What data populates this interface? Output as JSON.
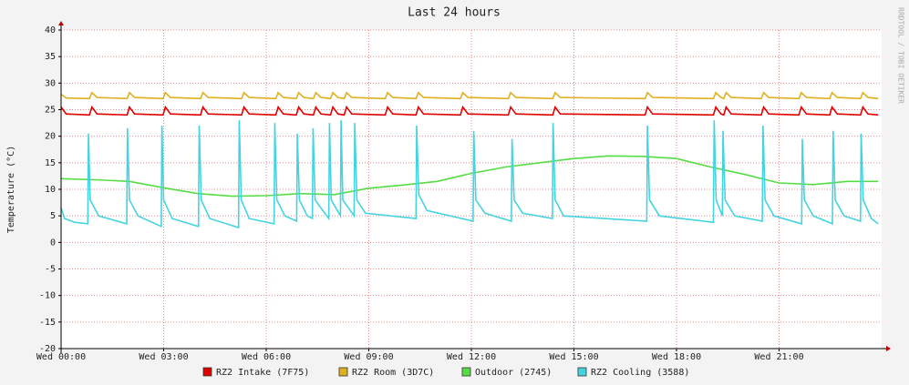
{
  "chart_data": {
    "type": "line",
    "title": "Last 24 hours",
    "y_label": "Temperature (°C)",
    "watermark": "RRDTOOL / TOBI OETIKER",
    "xlim": [
      0,
      24
    ],
    "xticks": [
      {
        "value": 0,
        "label": "Wed 00:00"
      },
      {
        "value": 3,
        "label": "Wed 03:00"
      },
      {
        "value": 6,
        "label": "Wed 06:00"
      },
      {
        "value": 9,
        "label": "Wed 09:00"
      },
      {
        "value": 12,
        "label": "Wed 12:00"
      },
      {
        "value": 15,
        "label": "Wed 15:00"
      },
      {
        "value": 18,
        "label": "Wed 18:00"
      },
      {
        "value": 21,
        "label": "Wed 21:00"
      }
    ],
    "ylim": [
      -20,
      40
    ],
    "yticks": [
      -20,
      -15,
      -10,
      -5,
      0,
      5,
      10,
      15,
      20,
      25,
      30,
      35,
      40
    ],
    "grid": true,
    "series": [
      {
        "name": "RZ2 Intake (7F75)",
        "color": "#e00000",
        "x": [
          0,
          0.15,
          0.83,
          0.9,
          1.05,
          1.93,
          2.0,
          2.15,
          2.98,
          3.05,
          3.2,
          4.08,
          4.15,
          4.3,
          5.28,
          5.35,
          5.5,
          6.28,
          6.35,
          6.5,
          6.88,
          6.95,
          7.1,
          7.38,
          7.45,
          7.6,
          7.88,
          7.95,
          8.1,
          8.28,
          8.35,
          8.5,
          9.48,
          9.55,
          9.7,
          10.38,
          10.45,
          10.6,
          11.68,
          11.75,
          11.9,
          13.08,
          13.15,
          13.3,
          14.38,
          14.45,
          14.6,
          17.08,
          17.15,
          17.3,
          19.08,
          19.15,
          19.3,
          19.38,
          19.45,
          19.6,
          20.48,
          20.55,
          20.7,
          21.58,
          21.65,
          21.8,
          22.48,
          22.55,
          22.7,
          23.38,
          23.45,
          23.6,
          23.9
        ],
        "values": [
          25.5,
          24.2,
          24,
          25.5,
          24.2,
          24,
          25.5,
          24.2,
          24,
          25.5,
          24.2,
          24,
          25.5,
          24.2,
          24,
          25.5,
          24.2,
          24,
          25.5,
          24.2,
          24,
          25.5,
          24.2,
          24,
          25.5,
          24.2,
          24,
          25.5,
          24.2,
          24,
          25.5,
          24.2,
          24,
          25.5,
          24.2,
          24,
          25.5,
          24.2,
          24,
          25.5,
          24.2,
          24,
          25.5,
          24.2,
          24,
          25.5,
          24.2,
          24,
          25.5,
          24.2,
          24,
          25.5,
          24.2,
          24,
          25.5,
          24.2,
          24,
          25.5,
          24.2,
          24,
          25.5,
          24.2,
          24,
          25.5,
          24.2,
          24,
          25.5,
          24.2,
          24
        ]
      },
      {
        "name": "RZ2 Room (3D7C)",
        "color": "#e0b020",
        "x": [
          0,
          0.15,
          0.83,
          0.9,
          1.05,
          1.93,
          2.0,
          2.15,
          2.98,
          3.05,
          3.2,
          4.08,
          4.15,
          4.3,
          5.28,
          5.35,
          5.5,
          6.28,
          6.35,
          6.5,
          6.88,
          6.95,
          7.1,
          7.38,
          7.45,
          7.6,
          7.88,
          7.95,
          8.1,
          8.28,
          8.35,
          8.5,
          9.48,
          9.55,
          9.7,
          10.38,
          10.45,
          10.6,
          11.68,
          11.75,
          11.9,
          13.08,
          13.15,
          13.3,
          14.38,
          14.45,
          14.6,
          17.08,
          17.15,
          17.3,
          19.08,
          19.15,
          19.3,
          19.38,
          19.45,
          19.6,
          20.48,
          20.55,
          20.7,
          21.58,
          21.65,
          21.8,
          22.48,
          22.55,
          22.7,
          23.38,
          23.45,
          23.6,
          23.9
        ],
        "values": [
          27.9,
          27.2,
          27.1,
          28.2,
          27.3,
          27.1,
          28.2,
          27.3,
          27.1,
          28.2,
          27.3,
          27.1,
          28.2,
          27.3,
          27.1,
          28.2,
          27.3,
          27.1,
          28.2,
          27.3,
          27.1,
          28.2,
          27.3,
          27.1,
          28.2,
          27.3,
          27.1,
          28.2,
          27.3,
          27.1,
          28.2,
          27.3,
          27.1,
          28.2,
          27.3,
          27.1,
          28.2,
          27.3,
          27.1,
          28.2,
          27.3,
          27.1,
          28.2,
          27.3,
          27.1,
          28.2,
          27.3,
          27.1,
          28.2,
          27.3,
          27.1,
          28.2,
          27.3,
          27.1,
          28.2,
          27.3,
          27.1,
          28.2,
          27.3,
          27.1,
          28.2,
          27.3,
          27.1,
          28.2,
          27.3,
          27.1,
          28.2,
          27.3,
          27.1
        ]
      },
      {
        "name": "Outdoor (2745)",
        "color": "#55dd44",
        "x": [
          0,
          1,
          2,
          3,
          4,
          5,
          6,
          7,
          8,
          9,
          10,
          11,
          12,
          13,
          14,
          15,
          16,
          17,
          18,
          19,
          20,
          21,
          22,
          23,
          23.9
        ],
        "values": [
          12,
          11.8,
          11.5,
          10.3,
          9.2,
          8.7,
          8.8,
          9.2,
          9.0,
          10.2,
          10.8,
          11.5,
          13,
          14.2,
          15,
          15.8,
          16.3,
          16.2,
          15.8,
          14.2,
          12.8,
          11.2,
          10.9,
          11.5,
          11.5
        ]
      },
      {
        "name": "RZ2 Cooling (3588)",
        "color": "#44d4e0",
        "x": [
          0,
          0.1,
          0.4,
          0.78,
          0.8,
          0.85,
          1.1,
          1.92,
          1.94,
          2.0,
          2.25,
          2.93,
          2.95,
          3.0,
          3.25,
          4.02,
          4.04,
          4.1,
          4.35,
          5.19,
          5.21,
          5.27,
          5.5,
          6.23,
          6.25,
          6.31,
          6.55,
          6.89,
          6.91,
          6.97,
          7.2,
          7.35,
          7.37,
          7.43,
          7.83,
          7.85,
          7.9,
          8.17,
          8.19,
          8.24,
          8.57,
          8.59,
          8.65,
          8.9,
          10.38,
          10.4,
          10.46,
          10.7,
          12.05,
          12.07,
          12.13,
          12.4,
          13.17,
          13.19,
          13.25,
          13.5,
          14.37,
          14.39,
          14.45,
          14.7,
          17.13,
          17.15,
          17.21,
          17.5,
          19.08,
          19.1,
          19.16,
          19.34,
          19.36,
          19.42,
          19.7,
          20.51,
          20.53,
          20.59,
          20.85,
          21.66,
          21.68,
          21.74,
          22.0,
          22.56,
          22.58,
          22.64,
          22.9,
          23.38,
          23.4,
          23.46,
          23.7,
          23.9
        ],
        "values": [
          6.5,
          4.5,
          3.8,
          3.5,
          20.5,
          8,
          5,
          3.5,
          21.5,
          8,
          5,
          3,
          22,
          8,
          4.5,
          3,
          22,
          8,
          4.5,
          2.8,
          23,
          8,
          4.5,
          3.5,
          22.5,
          8,
          5,
          4,
          20.5,
          8,
          5,
          4.5,
          21.5,
          8,
          4.5,
          22.5,
          8,
          5,
          23,
          8,
          5,
          22.5,
          8,
          5.5,
          4.5,
          22,
          9,
          6,
          4,
          21,
          8,
          5.5,
          4,
          19.5,
          8,
          5.5,
          4.5,
          22.5,
          8,
          5,
          4,
          22,
          8,
          5,
          3.8,
          23,
          8,
          5,
          21,
          8,
          5,
          4,
          22,
          8,
          5,
          3.5,
          19.5,
          8,
          5,
          3.5,
          21,
          8,
          5,
          4,
          20.5,
          8,
          4.5,
          3.5
        ]
      }
    ]
  }
}
